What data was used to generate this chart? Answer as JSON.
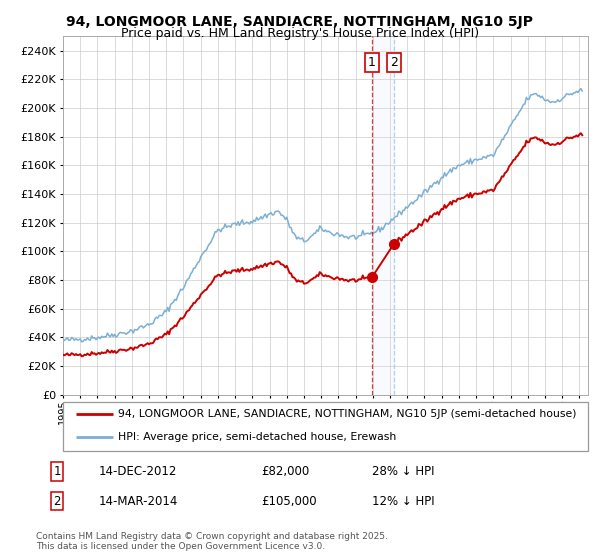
{
  "title": "94, LONGMOOR LANE, SANDIACRE, NOTTINGHAM, NG10 5JP",
  "subtitle": "Price paid vs. HM Land Registry's House Price Index (HPI)",
  "legend_line1": "94, LONGMOOR LANE, SANDIACRE, NOTTINGHAM, NG10 5JP (semi-detached house)",
  "legend_line2": "HPI: Average price, semi-detached house, Erewash",
  "house_color": "#cc0000",
  "hpi_color": "#7bafd4",
  "vline1_color": "#cc0000",
  "vline2_color": "#aaccee",
  "span_color": "#ccddef",
  "ylim": [
    0,
    250000
  ],
  "ytick_step": 20000,
  "xlim_start": 1995,
  "xlim_end": 2025.5,
  "purchase1_date": 2012.95,
  "purchase1_price": 82000,
  "purchase2_date": 2014.21,
  "purchase2_price": 105000,
  "table_row1": [
    "1",
    "14-DEC-2012",
    "£82,000",
    "28% ↓ HPI"
  ],
  "table_row2": [
    "2",
    "14-MAR-2014",
    "£105,000",
    "12% ↓ HPI"
  ],
  "footnote": "Contains HM Land Registry data © Crown copyright and database right 2025.\nThis data is licensed under the Open Government Licence v3.0.",
  "background_color": "#ffffff",
  "grid_color": "#cccccc",
  "hpi_keypoints": [
    [
      1995.0,
      38000
    ],
    [
      1996.0,
      38800
    ],
    [
      1997.0,
      40000
    ],
    [
      1998.0,
      42000
    ],
    [
      1999.0,
      44500
    ],
    [
      2000.0,
      49000
    ],
    [
      2001.0,
      58000
    ],
    [
      2002.0,
      75000
    ],
    [
      2003.0,
      96000
    ],
    [
      2004.0,
      115000
    ],
    [
      2005.0,
      119000
    ],
    [
      2006.0,
      121000
    ],
    [
      2007.0,
      126000
    ],
    [
      2007.5,
      128000
    ],
    [
      2008.0,
      122000
    ],
    [
      2008.5,
      110000
    ],
    [
      2009.0,
      107000
    ],
    [
      2009.5,
      111000
    ],
    [
      2010.0,
      116000
    ],
    [
      2010.5,
      113000
    ],
    [
      2011.0,
      112000
    ],
    [
      2011.5,
      110000
    ],
    [
      2012.0,
      110000
    ],
    [
      2012.5,
      111000
    ],
    [
      2013.0,
      113000
    ],
    [
      2013.5,
      116000
    ],
    [
      2014.0,
      121000
    ],
    [
      2015.0,
      131000
    ],
    [
      2016.0,
      141000
    ],
    [
      2017.0,
      152000
    ],
    [
      2018.0,
      160000
    ],
    [
      2019.0,
      164000
    ],
    [
      2020.0,
      167000
    ],
    [
      2021.0,
      187000
    ],
    [
      2022.0,
      207000
    ],
    [
      2022.5,
      210000
    ],
    [
      2023.0,
      206000
    ],
    [
      2023.5,
      204000
    ],
    [
      2024.0,
      207000
    ],
    [
      2024.5,
      210000
    ],
    [
      2025.0,
      212000
    ]
  ],
  "noise_seed": 42,
  "noise_std": 1000
}
